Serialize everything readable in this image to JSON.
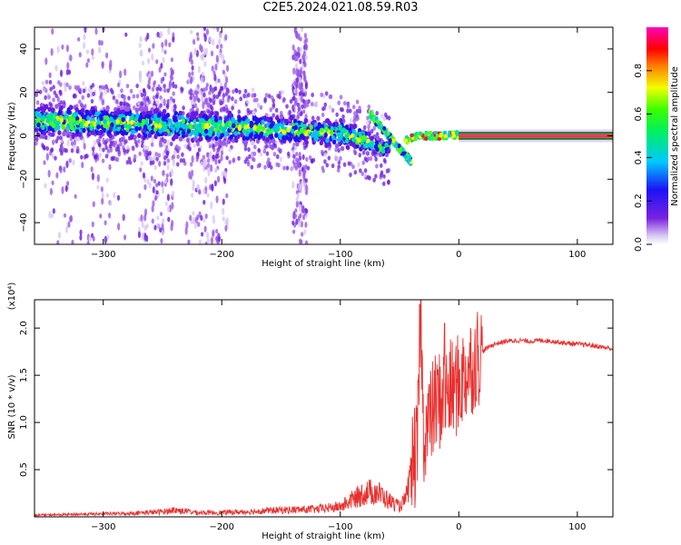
{
  "title": "C2E5.2024.021.08.59.R03",
  "chart_data": [
    {
      "type": "heatmap",
      "xlabel": "Height of straight line (km)",
      "ylabel": "Frequency (Hz)",
      "xlim": [
        -358,
        130
      ],
      "ylim": [
        -50,
        50
      ],
      "xticks": [
        -300,
        -200,
        -100,
        0,
        100
      ],
      "yticks": [
        -40,
        -20,
        0,
        20,
        40
      ],
      "colorbar": {
        "label": "Normalized spectral amplitude",
        "range": [
          0,
          1
        ],
        "ticks": [
          "0.0",
          "0.2",
          "0.4",
          "0.6",
          "0.8"
        ],
        "colormap": "white-purple-blue-cyan-green-yellow-red-magenta"
      },
      "ridge": {
        "x": [
          -358,
          -300,
          -250,
          -200,
          -150,
          -120,
          -100,
          -80,
          -65,
          -50,
          -40,
          -30,
          -20,
          -10,
          0,
          50,
          100,
          130
        ],
        "y": [
          7,
          6,
          5,
          4,
          3,
          2,
          1,
          -2,
          -6,
          -4,
          -1,
          0,
          0,
          0,
          0.5,
          0,
          0,
          0
        ],
        "spread_hz": [
          8,
          8,
          8,
          8,
          7,
          7,
          7,
          6,
          4,
          3,
          2,
          1.5,
          1.5,
          1.5,
          1.5,
          1.2,
          1.2,
          1.2
        ]
      },
      "grid": false
    },
    {
      "type": "line",
      "xlabel": "Height of straight line (km)",
      "ylabel": "SNR (10 * v/v)",
      "yscale_note": "(x10⁴)",
      "xlim": [
        -358,
        130
      ],
      "ylim": [
        0,
        2.3
      ],
      "xticks": [
        -300,
        -200,
        -100,
        0,
        100
      ],
      "yticks": [
        0.5,
        1.0,
        1.5,
        2.0
      ],
      "color": "#e8302e",
      "series": [
        {
          "x": [
            -358,
            -320,
            -280,
            -250,
            -240,
            -220,
            -200,
            -180,
            -150,
            -120,
            -100,
            -90,
            -80,
            -70,
            -60,
            -50,
            -45,
            -40,
            -35,
            -32,
            -30,
            -25,
            -20,
            -15,
            -10,
            -5,
            0,
            5,
            10,
            15,
            20,
            25,
            30,
            40,
            50,
            60,
            70,
            80,
            90,
            100,
            110,
            120,
            130
          ],
          "y": [
            0.02,
            0.03,
            0.04,
            0.06,
            0.08,
            0.05,
            0.05,
            0.06,
            0.08,
            0.09,
            0.12,
            0.2,
            0.28,
            0.3,
            0.2,
            0.12,
            0.2,
            0.5,
            0.7,
            2.2,
            0.9,
            1.0,
            1.2,
            1.25,
            1.3,
            1.35,
            1.4,
            1.5,
            1.6,
            1.7,
            1.75,
            1.8,
            1.83,
            1.86,
            1.87,
            1.86,
            1.87,
            1.86,
            1.84,
            1.83,
            1.82,
            1.8,
            1.78
          ]
        }
      ],
      "peaks": [
        {
          "x": -33,
          "y": 2.25
        },
        {
          "x": -25,
          "y": 1.4
        },
        {
          "x": -12,
          "y": 2.05
        },
        {
          "x": 12,
          "y": 1.75
        }
      ],
      "grid": false
    }
  ]
}
